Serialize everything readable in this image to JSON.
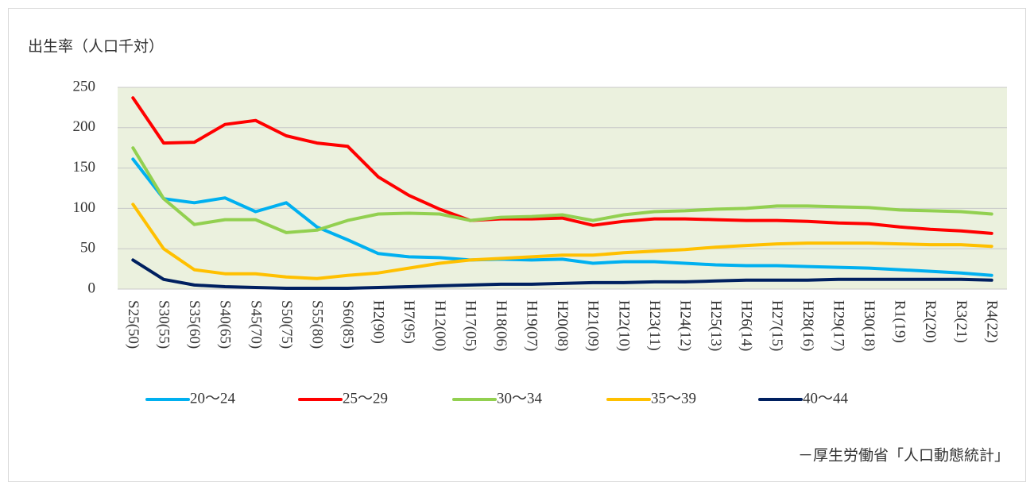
{
  "chart_data": {
    "type": "line",
    "title": "出生率（人口千対）",
    "source": "－厚生労働省「人口動態統計」",
    "categories": [
      "S25(50)",
      "S30(55)",
      "S35(60)",
      "S40(65)",
      "S45(70)",
      "S50(75)",
      "S55(80)",
      "S60(85)",
      "H2(90)",
      "H7(95)",
      "H12(00)",
      "H17(05)",
      "H18(06)",
      "H19(07)",
      "H20(08)",
      "H21(09)",
      "H22(10)",
      "H23(11)",
      "H24(12)",
      "H25(13)",
      "H26(14)",
      "H27(15)",
      "H28(16)",
      "H29(17)",
      "H30(18)",
      "R1(19)",
      "R2(20)",
      "R3(21)",
      "R4(22)"
    ],
    "series": [
      {
        "name": "20～24",
        "color": "#00b0f0",
        "values": [
          161,
          112,
          107,
          113,
          96,
          107,
          77,
          61,
          44,
          40,
          39,
          36,
          37,
          36,
          37,
          32,
          34,
          34,
          32,
          30,
          29,
          29,
          28,
          27,
          26,
          24,
          22,
          20,
          17
        ]
      },
      {
        "name": "25～29",
        "color": "#ff0000",
        "values": [
          237,
          181,
          182,
          204,
          209,
          190,
          181,
          177,
          139,
          116,
          99,
          85,
          87,
          87,
          88,
          79,
          84,
          87,
          87,
          86,
          85,
          85,
          84,
          82,
          81,
          77,
          74,
          72,
          69
        ]
      },
      {
        "name": "30～34",
        "color": "#92d050",
        "values": [
          175,
          112,
          80,
          86,
          86,
          70,
          73,
          85,
          93,
          94,
          93,
          85,
          89,
          90,
          92,
          85,
          92,
          96,
          97,
          99,
          100,
          103,
          103,
          102,
          101,
          98,
          97,
          96,
          93
        ]
      },
      {
        "name": "35～39",
        "color": "#ffc000",
        "values": [
          105,
          50,
          24,
          19,
          19,
          15,
          13,
          17,
          20,
          26,
          32,
          36,
          38,
          40,
          42,
          42,
          45,
          47,
          49,
          52,
          54,
          56,
          57,
          57,
          57,
          56,
          55,
          55,
          53
        ]
      },
      {
        "name": "40～44",
        "color": "#002060",
        "values": [
          36,
          12,
          5,
          3,
          2,
          1,
          1,
          1,
          2,
          3,
          4,
          5,
          6,
          6,
          7,
          8,
          8,
          9,
          9,
          10,
          11,
          11,
          11,
          12,
          12,
          12,
          12,
          12,
          11
        ]
      }
    ],
    "ylim": [
      0,
      250
    ],
    "yticks": [
      0,
      50,
      100,
      150,
      200,
      250
    ],
    "grid": true,
    "plot_background": "#ebf1de"
  }
}
